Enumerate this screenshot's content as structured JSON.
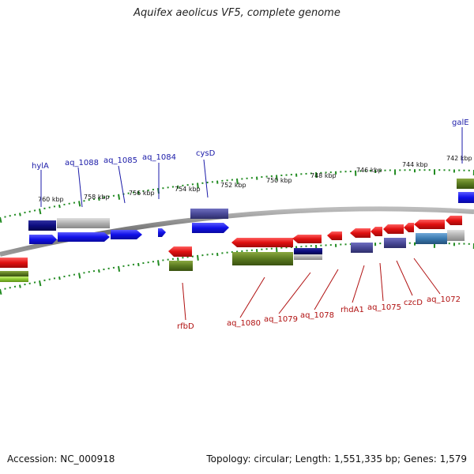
{
  "title": "Aquifex aeolicus VF5, complete genome",
  "footer": {
    "accession": "Accession: NC_000918",
    "topology": "Topology: circular; Length: 1,551,335 bp; Genes: 1,579"
  },
  "ticks": [
    {
      "label": "742 kbp"
    },
    {
      "label": "744 kbp"
    },
    {
      "label": "746 kbp"
    },
    {
      "label": "748 kbp"
    },
    {
      "label": "750 kbp"
    },
    {
      "label": "752 kbp"
    },
    {
      "label": "754 kbp"
    },
    {
      "label": "756 kbp"
    },
    {
      "label": "758 kbp"
    },
    {
      "label": "760 kbp"
    }
  ],
  "top_labels": [
    {
      "text": "hylA"
    },
    {
      "text": "aq_1088"
    },
    {
      "text": "aq_1085"
    },
    {
      "text": "aq_1084"
    },
    {
      "text": "cysD"
    },
    {
      "text": "galE"
    }
  ],
  "bottom_labels": [
    {
      "text": "rfbD"
    },
    {
      "text": "aq_1080"
    },
    {
      "text": "aq_1079"
    },
    {
      "text": "aq_1078"
    },
    {
      "text": "rhdA1"
    },
    {
      "text": "aq_1075"
    },
    {
      "text": "czcD"
    },
    {
      "text": "aq_1072"
    }
  ],
  "colors": {
    "forward_gene": "#1010e8",
    "reverse_gene": "#e01010",
    "dark_blue": "#0c0c80",
    "purple": "#4a4a98",
    "olive": "#5a7a20",
    "lime": "#8ac830",
    "gray": "#b0b0b0",
    "steel": "#3a7ab0",
    "tick_green": "#228b22",
    "top_label": "#1a1aa8",
    "bottom_label": "#b01010"
  }
}
